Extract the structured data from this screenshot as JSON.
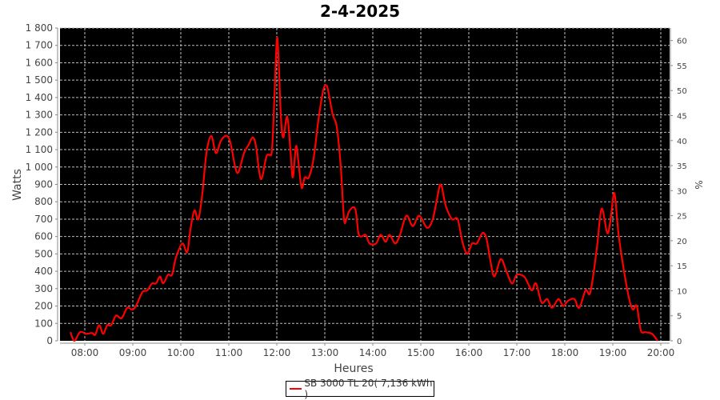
{
  "chart_data": {
    "type": "line",
    "title": "2-4-2025",
    "xlabel": "Heures",
    "ylabel": "Watts",
    "y2label": "%",
    "xlim": [
      "07:29",
      "20:11"
    ],
    "ylim": [
      0,
      1800
    ],
    "y2lim": [
      0,
      62.5
    ],
    "grid": true,
    "background": "#000000",
    "x_ticks": [
      "08:00",
      "09:00",
      "10:00",
      "11:00",
      "12:00",
      "13:00",
      "14:00",
      "15:00",
      "16:00",
      "17:00",
      "18:00",
      "19:00",
      "20:00"
    ],
    "y_ticks": [
      "0",
      "100",
      "200",
      "300",
      "400",
      "500",
      "600",
      "700",
      "800",
      "900",
      "1 000",
      "1 100",
      "1 200",
      "1 300",
      "1 400",
      "1 500",
      "1 600",
      "1 700",
      "1 800"
    ],
    "y2_ticks": [
      "0",
      "5",
      "10",
      "15",
      "20",
      "25",
      "30",
      "35",
      "40",
      "45",
      "50",
      "55",
      "60"
    ],
    "legend_position": "bottom",
    "series": [
      {
        "name": "SB 3000 TL 20( 7,136 kWh )",
        "color": "#ff0000",
        "x": [
          "07:42",
          "07:47",
          "07:54",
          "08:02",
          "08:09",
          "08:13",
          "08:18",
          "08:23",
          "08:28",
          "08:33",
          "08:39",
          "08:46",
          "08:53",
          "08:59",
          "09:04",
          "09:12",
          "09:18",
          "09:24",
          "09:29",
          "09:34",
          "09:38",
          "09:44",
          "09:49",
          "09:54",
          "10:02",
          "10:08",
          "10:12",
          "10:17",
          "10:22",
          "10:27",
          "10:32",
          "10:38",
          "10:44",
          "10:50",
          "10:57",
          "11:02",
          "11:08",
          "11:12",
          "11:19",
          "11:25",
          "11:30",
          "11:34",
          "11:40",
          "11:47",
          "11:51",
          "11:54",
          "11:57",
          "12:00",
          "12:02",
          "12:05",
          "12:08",
          "12:13",
          "12:17",
          "12:20",
          "12:24",
          "12:27",
          "12:31",
          "12:35",
          "12:40",
          "12:46",
          "12:52",
          "12:58",
          "13:02",
          "13:05",
          "13:10",
          "13:15",
          "13:20",
          "13:24",
          "13:27",
          "13:31",
          "13:38",
          "13:42",
          "13:46",
          "13:51",
          "13:56",
          "14:04",
          "14:10",
          "14:16",
          "14:21",
          "14:28",
          "14:34",
          "14:42",
          "14:50",
          "14:58",
          "15:08",
          "15:15",
          "15:20",
          "15:25",
          "15:31",
          "15:39",
          "15:46",
          "15:52",
          "15:58",
          "16:04",
          "16:10",
          "16:17",
          "16:22",
          "16:27",
          "16:32",
          "16:40",
          "16:47",
          "16:54",
          "17:00",
          "17:09",
          "17:14",
          "17:19",
          "17:24",
          "17:31",
          "17:38",
          "17:44",
          "17:52",
          "17:58",
          "18:04",
          "18:12",
          "18:18",
          "18:26",
          "18:32",
          "18:40",
          "18:46",
          "18:53",
          "18:57",
          "19:02",
          "19:07",
          "19:13",
          "19:20",
          "19:25",
          "19:30",
          "19:35",
          "19:41",
          "19:49",
          "19:56"
        ],
        "y": [
          50,
          0,
          50,
          40,
          45,
          35,
          90,
          40,
          90,
          90,
          145,
          130,
          190,
          180,
          200,
          280,
          290,
          330,
          330,
          370,
          330,
          380,
          380,
          480,
          560,
          510,
          640,
          750,
          700,
          850,
          1080,
          1180,
          1080,
          1150,
          1180,
          1140,
          1000,
          970,
          1080,
          1130,
          1170,
          1120,
          930,
          1060,
          1070,
          1100,
          1400,
          1730,
          1650,
          1300,
          1170,
          1290,
          1100,
          940,
          1120,
          1030,
          880,
          940,
          940,
          1050,
          1270,
          1440,
          1470,
          1420,
          1300,
          1230,
          1000,
          700,
          700,
          750,
          760,
          620,
          600,
          610,
          560,
          560,
          610,
          570,
          610,
          560,
          610,
          720,
          660,
          720,
          650,
          700,
          810,
          900,
          780,
          700,
          700,
          570,
          500,
          560,
          560,
          620,
          590,
          460,
          370,
          470,
          400,
          330,
          380,
          370,
          330,
          290,
          330,
          220,
          240,
          190,
          240,
          200,
          230,
          240,
          190,
          290,
          280,
          530,
          760,
          620,
          690,
          850,
          620,
          430,
          250,
          180,
          200,
          60,
          50,
          40,
          0
        ]
      }
    ]
  }
}
